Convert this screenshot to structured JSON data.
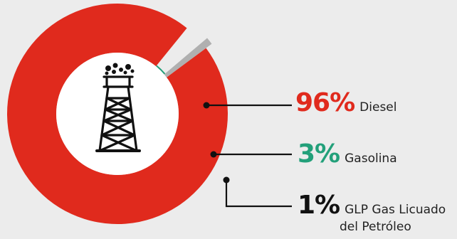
{
  "chart_data": {
    "type": "pie",
    "style": "donut",
    "categories": [
      "Diesel",
      "Gasolina",
      "GLP Gas Licuado del Petróleo"
    ],
    "values": [
      96,
      3,
      1
    ],
    "labels": [
      {
        "value_text": "96%",
        "name": "Diesel"
      },
      {
        "value_text": "3%",
        "name": "Gasolina"
      },
      {
        "value_text": "1%",
        "name_line1": "GLP Gas Licuado",
        "name_line2": "del Petróleo"
      }
    ],
    "colors": [
      "#e02a1d",
      "#23a07a",
      "#b0b0b0"
    ],
    "background": "#ececec",
    "center_icon": "oil-derrick-icon",
    "title": "",
    "legend": "right"
  }
}
